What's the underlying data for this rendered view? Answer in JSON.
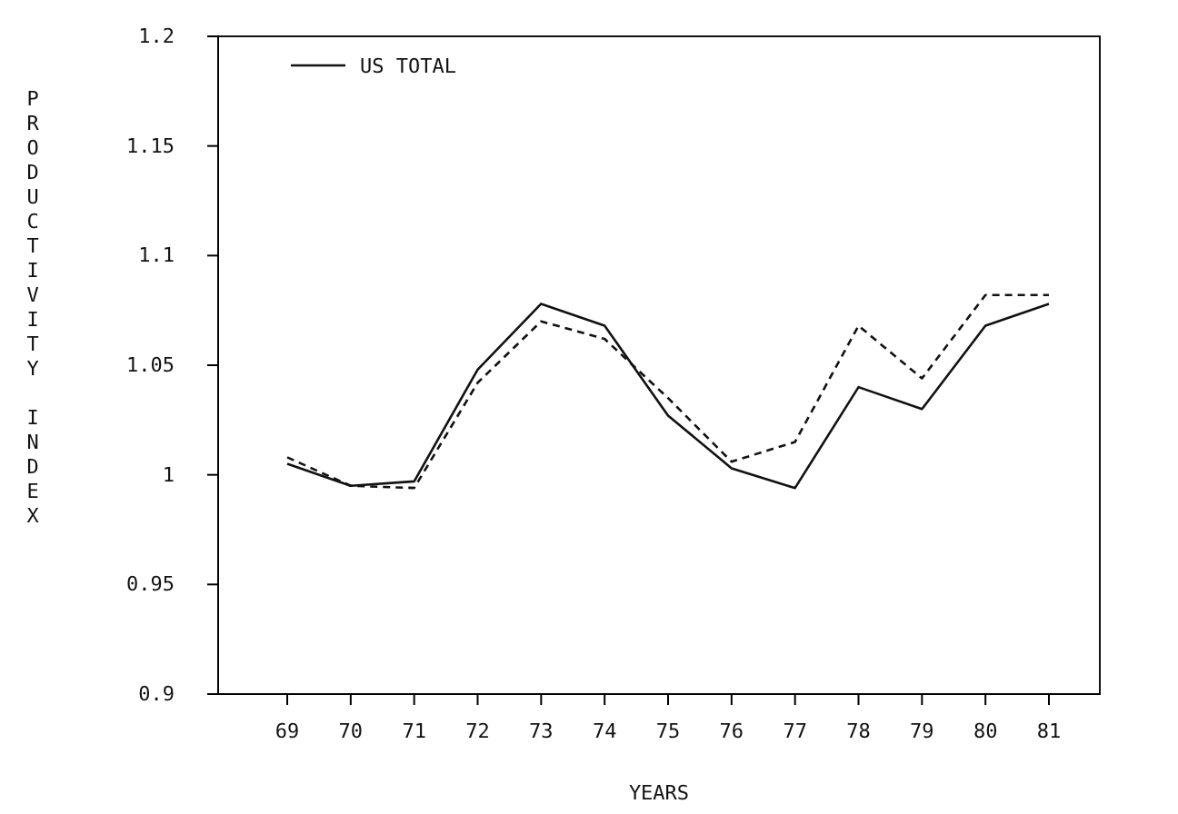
{
  "chart_data": {
    "type": "line",
    "xlabel": "YEARS",
    "ylabel": "PRODUCTIVITY INDEX",
    "categories": [
      "69",
      "70",
      "71",
      "72",
      "73",
      "74",
      "75",
      "76",
      "77",
      "78",
      "79",
      "80",
      "81"
    ],
    "series": [
      {
        "name": "US TOTAL",
        "color": "#111111",
        "line_style": "solid",
        "values": [
          1.005,
          0.995,
          0.997,
          1.048,
          1.078,
          1.068,
          1.027,
          1.003,
          0.994,
          1.04,
          1.03,
          1.068,
          1.078
        ]
      },
      {
        "color": "#111111",
        "line_style": "dashed",
        "values": [
          1.008,
          0.995,
          0.994,
          1.042,
          1.07,
          1.062,
          1.035,
          1.006,
          1.015,
          1.068,
          1.044,
          1.082,
          1.082
        ]
      }
    ],
    "ylim": [
      0.9,
      1.2
    ],
    "yticks": [
      0.9,
      {
        "value": 0.95,
        "label": "0.95"
      },
      1,
      1.05,
      1.1,
      1.15,
      1.2
    ],
    "grid": false,
    "legend": "top left",
    "marker": "none"
  }
}
